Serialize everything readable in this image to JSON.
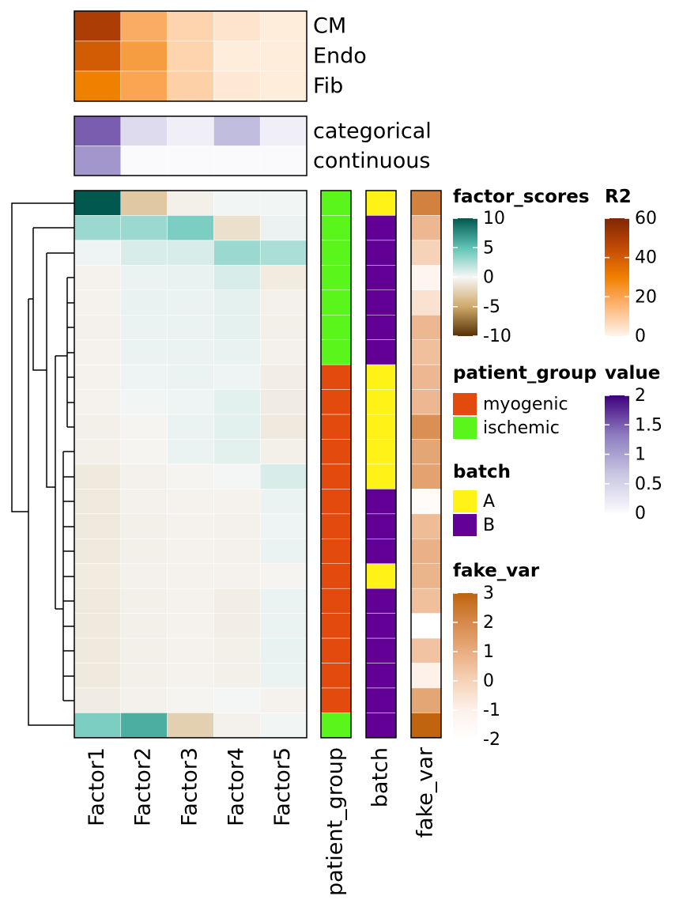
{
  "chart_data": {
    "type": "heatmap",
    "columns": [
      "Factor1",
      "Factor2",
      "Factor3",
      "Factor4",
      "Factor5"
    ],
    "r2": {
      "title": "R2",
      "rows": [
        "CM",
        "Endo",
        "Fib"
      ],
      "values": [
        [
          50,
          18,
          8,
          4,
          2
        ],
        [
          40,
          22,
          8,
          2,
          2
        ],
        [
          30,
          20,
          9,
          3,
          2
        ]
      ],
      "lim": [
        0,
        60
      ],
      "ticks": [
        60,
        40,
        20,
        0
      ],
      "colors": [
        "#fff5eb",
        "#fdb77a",
        "#f08000",
        "#c24a05",
        "#7f2704"
      ]
    },
    "value": {
      "title": "value",
      "rows": [
        "categorical",
        "continuous"
      ],
      "values": [
        [
          1.5,
          0.4,
          0.15,
          0.75,
          0.15
        ],
        [
          1.1,
          0.02,
          0.02,
          0.02,
          0.02
        ]
      ],
      "lim": [
        0,
        2
      ],
      "ticks": [
        2,
        1.5,
        1,
        0.5,
        0
      ],
      "colors": [
        "#fcfbfd",
        "#c8c6e2",
        "#8e7cc0",
        "#3f007d"
      ]
    },
    "factor_scores": {
      "title": "factor_scores",
      "values": [
        [
          10,
          -3,
          -0.5,
          0.2,
          0.2
        ],
        [
          3,
          3,
          4,
          -1.5,
          0.4
        ],
        [
          0.3,
          1,
          1,
          3,
          2.5
        ],
        [
          -0.3,
          0.4,
          0.5,
          1,
          -0.8
        ],
        [
          -0.3,
          0.5,
          0.4,
          0.6,
          -0.4
        ],
        [
          -0.4,
          0.4,
          0.4,
          0.6,
          -0.5
        ],
        [
          -0.3,
          0.4,
          0.4,
          0.5,
          -0.4
        ],
        [
          -0.3,
          0.3,
          0.4,
          0.3,
          -0.6
        ],
        [
          -0.3,
          0.2,
          0.3,
          0.7,
          -0.7
        ],
        [
          -0.5,
          -0.2,
          0.4,
          0.7,
          -0.9
        ],
        [
          -0.5,
          -0.2,
          0.4,
          0.7,
          -0.5
        ],
        [
          -0.9,
          -0.4,
          -0.2,
          0.1,
          1
        ],
        [
          -0.9,
          -0.4,
          -0.3,
          -0.3,
          0.4
        ],
        [
          -0.9,
          -0.5,
          -0.3,
          -0.4,
          0.3
        ],
        [
          -0.9,
          -0.5,
          -0.3,
          -0.4,
          0.4
        ],
        [
          -0.8,
          -0.4,
          -0.3,
          -0.3,
          -0.2
        ],
        [
          -0.9,
          -0.5,
          -0.3,
          -0.6,
          0.4
        ],
        [
          -0.9,
          -0.5,
          -0.3,
          -0.6,
          0.4
        ],
        [
          -0.9,
          -0.5,
          -0.3,
          -0.5,
          0.5
        ],
        [
          -0.9,
          -0.5,
          -0.3,
          -0.5,
          0.4
        ],
        [
          -0.7,
          -0.4,
          -0.2,
          0.1,
          -0.3
        ],
        [
          4,
          6,
          -2.5,
          -0.4,
          0.2
        ]
      ],
      "lim": [
        -10,
        10
      ],
      "ticks": [
        10,
        5,
        0,
        -5,
        -10
      ],
      "colors": [
        "#543005",
        "#cfa969",
        "#f7f7f7",
        "#5ec4b5",
        "#01584f"
      ]
    },
    "patient_group": {
      "title": "patient_group",
      "levels": [
        "myogenic",
        "ischemic"
      ],
      "colors": [
        "#e34a0e",
        "#5af51a"
      ],
      "values": [
        "ischemic",
        "ischemic",
        "ischemic",
        "ischemic",
        "ischemic",
        "ischemic",
        "ischemic",
        "myogenic",
        "myogenic",
        "myogenic",
        "myogenic",
        "myogenic",
        "myogenic",
        "myogenic",
        "myogenic",
        "myogenic",
        "myogenic",
        "myogenic",
        "myogenic",
        "myogenic",
        "myogenic",
        "ischemic"
      ]
    },
    "batch": {
      "title": "batch",
      "levels": [
        "A",
        "B"
      ],
      "colors": [
        "#fef216",
        "#620096"
      ],
      "values": [
        "A",
        "B",
        "B",
        "B",
        "B",
        "B",
        "B",
        "A",
        "A",
        "A",
        "A",
        "A",
        "B",
        "B",
        "B",
        "A",
        "B",
        "B",
        "B",
        "B",
        "B",
        "B"
      ]
    },
    "fake_var": {
      "title": "fake_var",
      "values": [
        2.2,
        0.7,
        0,
        -1.3,
        -0.5,
        0.7,
        0.5,
        0.7,
        0.7,
        1.8,
        1.2,
        1.3,
        -1.7,
        0.6,
        0.9,
        0.8,
        0.5,
        -2,
        0.4,
        -1,
        1.2,
        3
      ],
      "lim": [
        -2,
        3
      ],
      "ticks": [
        3,
        2,
        1,
        0,
        -1,
        -2
      ],
      "colors": [
        "#ffffff",
        "#fdf1ea",
        "#f6d2b8",
        "#e9ad80",
        "#d6894a",
        "#c0640f"
      ]
    }
  }
}
